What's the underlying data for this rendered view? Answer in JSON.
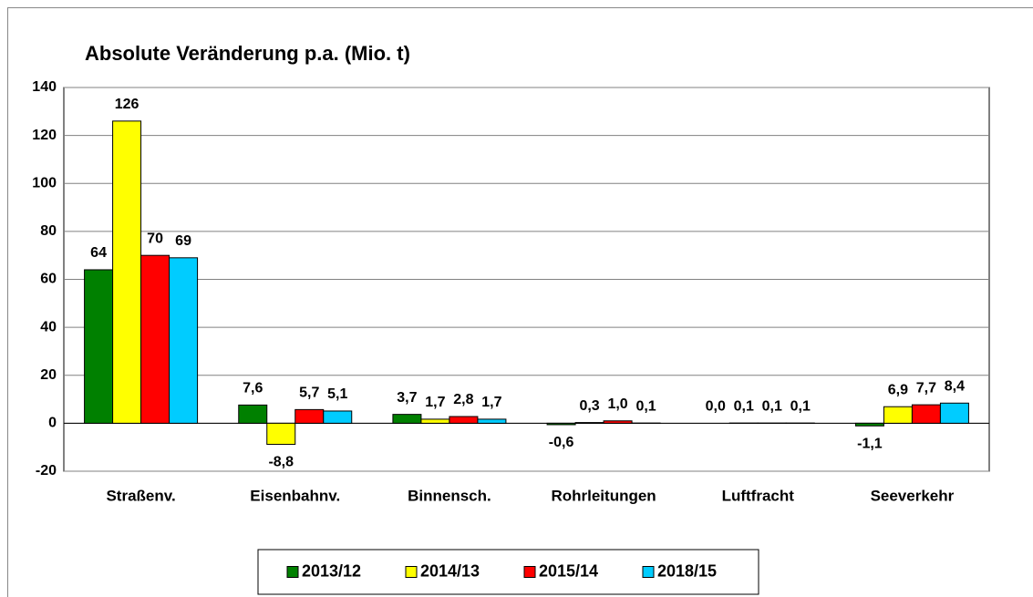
{
  "chart_data": {
    "type": "bar",
    "title": "Absolute Veränderung p.a. (Mio. t)",
    "categories": [
      "Straßenv.",
      "Eisenbahnv.",
      "Binnensch.",
      "Rohrleitungen",
      "Luftfracht",
      "Seeverkehr"
    ],
    "series": [
      {
        "name": "2013/12",
        "color": "#008000",
        "values": [
          64,
          7.6,
          3.7,
          -0.6,
          0.0,
          -1.1
        ],
        "value_labels": [
          "64",
          "7,6",
          "3,7",
          "-0,6",
          "0,0",
          "-1,1"
        ]
      },
      {
        "name": "2014/13",
        "color": "#ffff00",
        "values": [
          126,
          -8.8,
          1.7,
          0.3,
          0.1,
          6.9
        ],
        "value_labels": [
          "126",
          "-8,8",
          "1,7",
          "0,3",
          "0,1",
          "6,9"
        ]
      },
      {
        "name": "2015/14",
        "color": "#ff0000",
        "values": [
          70,
          5.7,
          2.8,
          1.0,
          0.1,
          7.7
        ],
        "value_labels": [
          "70",
          "5,7",
          "2,8",
          "1,0",
          "0,1",
          "7,7"
        ]
      },
      {
        "name": "2018/15",
        "color": "#00ccff",
        "values": [
          69,
          5.1,
          1.7,
          0.1,
          0.1,
          8.4
        ],
        "value_labels": [
          "69",
          "5,1",
          "1,7",
          "0,1",
          "0,1",
          "8,4"
        ]
      }
    ],
    "ylim": [
      -20,
      140
    ],
    "yticks": [
      -20,
      0,
      20,
      40,
      60,
      80,
      100,
      120,
      140
    ],
    "grid": true,
    "legend": "bottom"
  }
}
